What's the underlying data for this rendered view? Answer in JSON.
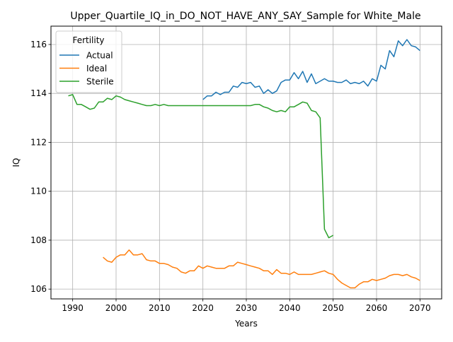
{
  "chart_data": {
    "type": "line",
    "title": "Upper_Quartile_IQ_in_DO_NOT_HAVE_ANY_SAY_Sample for White_Male",
    "xlabel": "Years",
    "ylabel": "IQ",
    "xlim": [
      1985,
      2075
    ],
    "ylim": [
      105.6,
      116.75
    ],
    "xticks": [
      1990,
      2000,
      2010,
      2020,
      2030,
      2040,
      2050,
      2060,
      2070
    ],
    "yticks": [
      106,
      108,
      110,
      112,
      114,
      116
    ],
    "grid": true,
    "legend": {
      "title": "Fertility",
      "position": "top-left"
    },
    "series": [
      {
        "name": "Actual",
        "color": "#1f77b4",
        "x": [
          2020,
          2021,
          2022,
          2023,
          2024,
          2025,
          2026,
          2027,
          2028,
          2029,
          2030,
          2031,
          2032,
          2033,
          2034,
          2035,
          2036,
          2037,
          2038,
          2039,
          2040,
          2041,
          2042,
          2043,
          2044,
          2045,
          2046,
          2047,
          2048,
          2049,
          2050,
          2051,
          2052,
          2053,
          2054,
          2055,
          2056,
          2057,
          2058,
          2059,
          2060,
          2061,
          2062,
          2063,
          2064,
          2065,
          2066,
          2067,
          2068,
          2069,
          2070
        ],
        "values": [
          113.75,
          113.9,
          113.9,
          114.05,
          113.95,
          114.05,
          114.05,
          114.3,
          114.25,
          114.45,
          114.4,
          114.45,
          114.25,
          114.3,
          114.0,
          114.15,
          114.0,
          114.1,
          114.45,
          114.55,
          114.55,
          114.85,
          114.6,
          114.9,
          114.45,
          114.8,
          114.4,
          114.5,
          114.6,
          114.5,
          114.5,
          114.45,
          114.45,
          114.55,
          114.4,
          114.45,
          114.4,
          114.5,
          114.3,
          114.6,
          114.5,
          115.15,
          115.0,
          115.75,
          115.5,
          116.15,
          115.95,
          116.2,
          115.95,
          115.9,
          115.75
        ]
      },
      {
        "name": "Ideal",
        "color": "#ff7f0e",
        "x": [
          1997,
          1998,
          1999,
          2000,
          2001,
          2002,
          2003,
          2004,
          2005,
          2006,
          2007,
          2008,
          2009,
          2010,
          2011,
          2012,
          2013,
          2014,
          2015,
          2016,
          2017,
          2018,
          2019,
          2020,
          2021,
          2022,
          2023,
          2024,
          2025,
          2026,
          2027,
          2028,
          2029,
          2030,
          2031,
          2032,
          2033,
          2034,
          2035,
          2036,
          2037,
          2038,
          2039,
          2040,
          2041,
          2042,
          2043,
          2044,
          2045,
          2046,
          2047,
          2048,
          2049,
          2050,
          2051,
          2052,
          2053,
          2054,
          2055,
          2056,
          2057,
          2058,
          2059,
          2060,
          2061,
          2062,
          2063,
          2064,
          2065,
          2066,
          2067,
          2068,
          2069,
          2070
        ],
        "values": [
          107.3,
          107.15,
          107.1,
          107.3,
          107.4,
          107.4,
          107.6,
          107.4,
          107.4,
          107.45,
          107.2,
          107.15,
          107.15,
          107.05,
          107.05,
          107.0,
          106.9,
          106.85,
          106.7,
          106.65,
          106.75,
          106.75,
          106.95,
          106.85,
          106.95,
          106.9,
          106.85,
          106.85,
          106.85,
          106.95,
          106.95,
          107.1,
          107.05,
          107.0,
          106.95,
          106.9,
          106.85,
          106.75,
          106.75,
          106.6,
          106.8,
          106.65,
          106.65,
          106.6,
          106.7,
          106.6,
          106.6,
          106.6,
          106.6,
          106.65,
          106.7,
          106.75,
          106.65,
          106.6,
          106.4,
          106.25,
          106.15,
          106.05,
          106.05,
          106.2,
          106.3,
          106.3,
          106.4,
          106.35,
          106.4,
          106.45,
          106.55,
          106.6,
          106.6,
          106.55,
          106.6,
          106.5,
          106.45,
          106.35
        ]
      },
      {
        "name": "Sterile",
        "color": "#2ca02c",
        "x": [
          1989,
          1990,
          1991,
          1992,
          1993,
          1994,
          1995,
          1996,
          1997,
          1998,
          1999,
          2000,
          2001,
          2002,
          2003,
          2004,
          2005,
          2006,
          2007,
          2008,
          2009,
          2010,
          2011,
          2012,
          2013,
          2014,
          2015,
          2016,
          2017,
          2018,
          2019,
          2020,
          2021,
          2022,
          2023,
          2024,
          2025,
          2026,
          2027,
          2028,
          2029,
          2030,
          2031,
          2032,
          2033,
          2034,
          2035,
          2036,
          2037,
          2038,
          2039,
          2040,
          2041,
          2042,
          2043,
          2044,
          2045,
          2046,
          2047,
          2048,
          2049,
          2050
        ],
        "values": [
          113.9,
          113.95,
          113.55,
          113.55,
          113.45,
          113.35,
          113.4,
          113.65,
          113.65,
          113.8,
          113.75,
          113.9,
          113.85,
          113.75,
          113.7,
          113.65,
          113.6,
          113.55,
          113.5,
          113.5,
          113.55,
          113.5,
          113.55,
          113.5,
          113.5,
          113.5,
          113.5,
          113.5,
          113.5,
          113.5,
          113.5,
          113.5,
          113.5,
          113.5,
          113.5,
          113.5,
          113.5,
          113.5,
          113.5,
          113.5,
          113.5,
          113.5,
          113.5,
          113.55,
          113.55,
          113.45,
          113.4,
          113.3,
          113.25,
          113.3,
          113.25,
          113.45,
          113.45,
          113.55,
          113.65,
          113.6,
          113.3,
          113.25,
          113.0,
          108.45,
          108.1,
          108.2
        ]
      }
    ]
  }
}
